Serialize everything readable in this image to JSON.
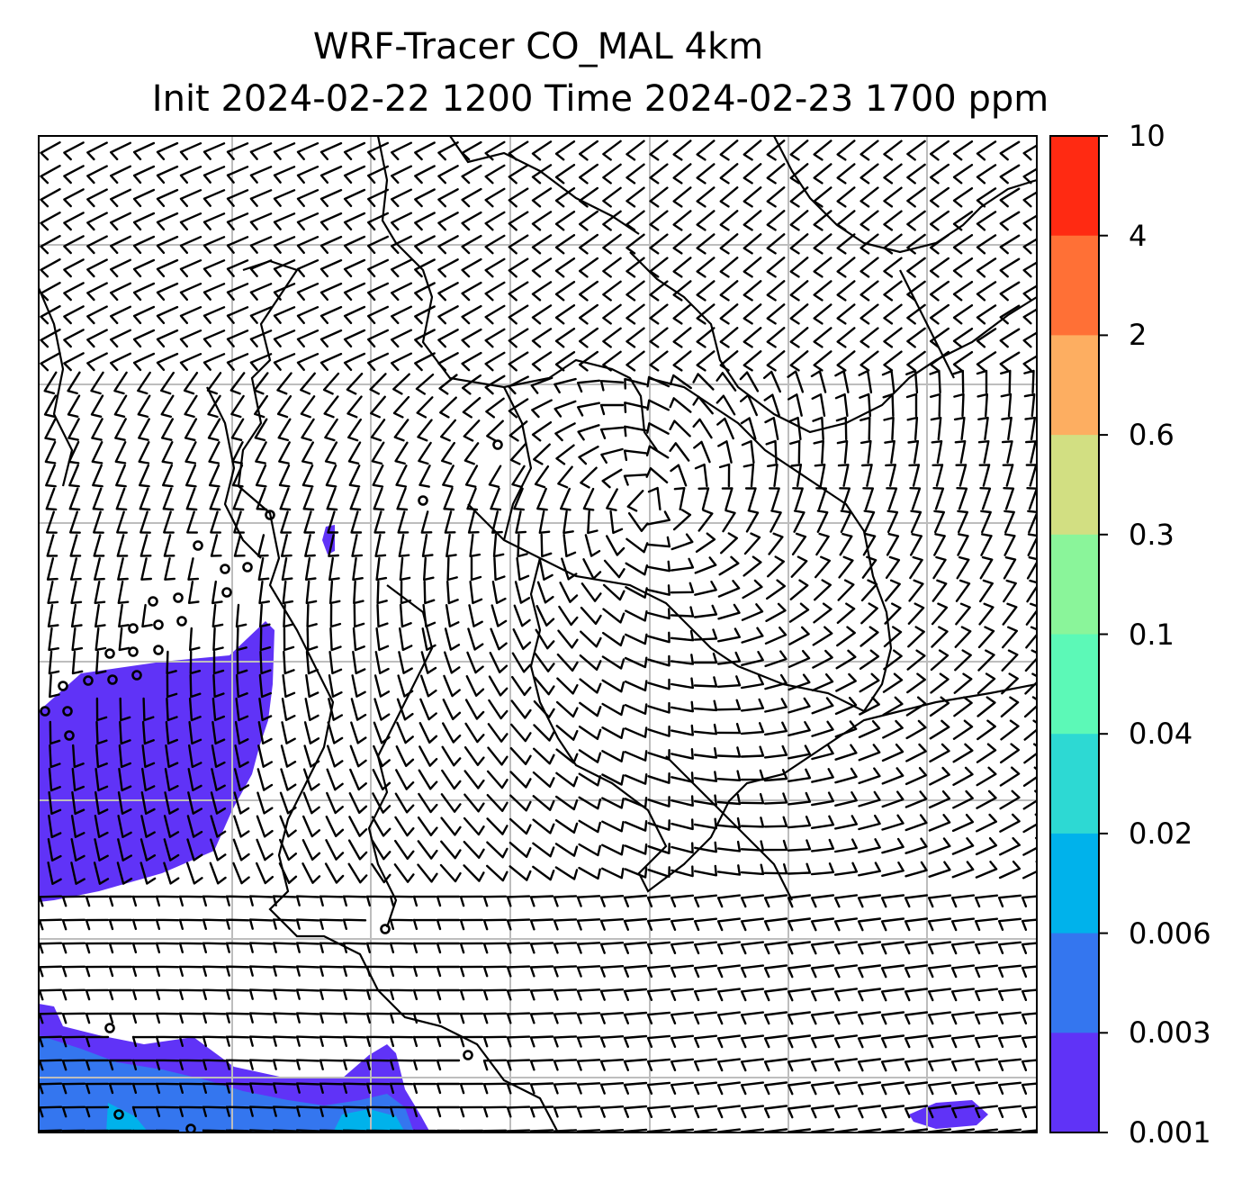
{
  "title_line1": "WRF-Tracer CO_MAL 4km",
  "title_line2": "Init 2024-02-22 1200 Time 2024-02-23 1700 ppm",
  "colorbar": {
    "levels": [
      "10",
      "4",
      "2",
      "0.6",
      "0.3",
      "0.1",
      "0.04",
      "0.02",
      "0.006",
      "0.003",
      "0.001"
    ],
    "colors_top_to_bottom": [
      "#ff2a12",
      "#ff7036",
      "#fdae61",
      "#d2df82",
      "#8af59a",
      "#5cf9b7",
      "#2dd9d3",
      "#00b2eb",
      "#3476ef",
      "#6033f7"
    ]
  },
  "map": {
    "barb_color": "#000000",
    "coastline_color": "#000000",
    "gridline_color": "#bdbdbd",
    "fill_colors": {
      "0.001": "#6033f7",
      "0.003": "#3476ef",
      "0.006": "#00b2eb"
    }
  }
}
